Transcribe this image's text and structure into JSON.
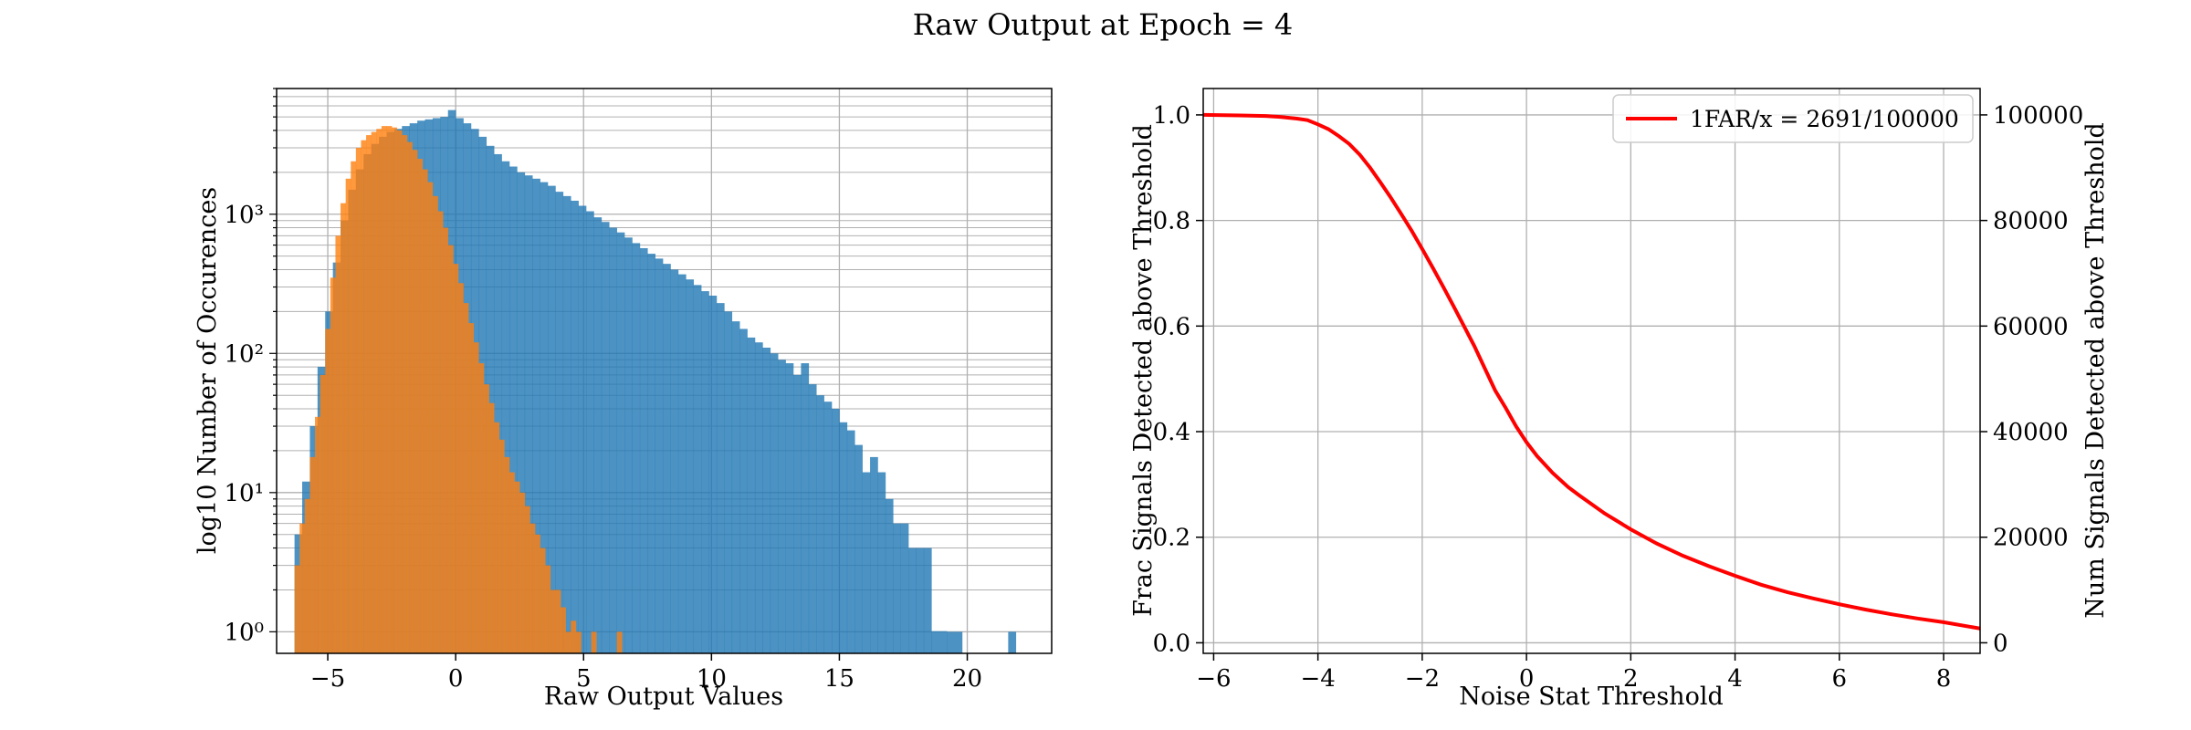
{
  "figure": {
    "title": "Raw Output at Epoch = 4"
  },
  "colors": {
    "blue": "#1f77b4",
    "orange": "#ff7f0e",
    "curve": "#ff0000",
    "grid": "#b0b0b0"
  },
  "chart_data": [
    {
      "type": "bar",
      "subtype": "histogram-overlay",
      "xlabel": "Raw Output Values",
      "ylabel": "log10 Number of Occurences",
      "xlim": [
        -7.0,
        23.3
      ],
      "ylim": [
        0.7,
        8000
      ],
      "yscale": "log",
      "grid": true,
      "x_ticks": [
        -5,
        0,
        5,
        10,
        15,
        20
      ],
      "x_tick_labels": [
        "−5",
        "0",
        "5",
        "10",
        "15",
        "20"
      ],
      "y_ticks": [
        1,
        10,
        100,
        1000
      ],
      "y_tick_labels": [
        "10⁰",
        "10¹",
        "10²",
        "10³"
      ],
      "series": [
        {
          "color": "#1f77b4",
          "alpha": 0.8,
          "bins": [
            [
              -6.3,
              -6.0,
              5
            ],
            [
              -6.0,
              -5.7,
              12
            ],
            [
              -5.7,
              -5.4,
              30
            ],
            [
              -5.4,
              -5.1,
              80
            ],
            [
              -5.1,
              -4.8,
              200
            ],
            [
              -4.8,
              -4.5,
              450
            ],
            [
              -4.5,
              -4.2,
              900
            ],
            [
              -4.2,
              -3.9,
              1500
            ],
            [
              -3.9,
              -3.6,
              2100
            ],
            [
              -3.6,
              -3.3,
              2700
            ],
            [
              -3.3,
              -3.0,
              3200
            ],
            [
              -3.0,
              -2.7,
              3600
            ],
            [
              -2.7,
              -2.4,
              3900
            ],
            [
              -2.4,
              -2.1,
              4100
            ],
            [
              -2.1,
              -1.8,
              4300
            ],
            [
              -1.8,
              -1.5,
              4500
            ],
            [
              -1.5,
              -1.2,
              4700
            ],
            [
              -1.2,
              -0.9,
              4800
            ],
            [
              -0.9,
              -0.6,
              4900
            ],
            [
              -0.6,
              -0.3,
              5000
            ],
            [
              -0.3,
              0.0,
              5600
            ],
            [
              0.0,
              0.3,
              4900
            ],
            [
              0.3,
              0.6,
              4500
            ],
            [
              0.6,
              0.9,
              4100
            ],
            [
              0.9,
              1.2,
              3600
            ],
            [
              1.2,
              1.5,
              3100
            ],
            [
              1.5,
              1.8,
              2700
            ],
            [
              1.8,
              2.1,
              2400
            ],
            [
              2.1,
              2.4,
              2200
            ],
            [
              2.4,
              2.7,
              2000
            ],
            [
              2.7,
              3.0,
              1900
            ],
            [
              3.0,
              3.3,
              1800
            ],
            [
              3.3,
              3.6,
              1700
            ],
            [
              3.6,
              3.9,
              1600
            ],
            [
              3.9,
              4.2,
              1450
            ],
            [
              4.2,
              4.5,
              1350
            ],
            [
              4.5,
              4.8,
              1250
            ],
            [
              4.8,
              5.1,
              1150
            ],
            [
              5.1,
              5.4,
              1050
            ],
            [
              5.4,
              5.7,
              950
            ],
            [
              5.7,
              6.0,
              880
            ],
            [
              6.0,
              6.3,
              800
            ],
            [
              6.3,
              6.6,
              740
            ],
            [
              6.6,
              6.9,
              680
            ],
            [
              6.9,
              7.2,
              620
            ],
            [
              7.2,
              7.5,
              570
            ],
            [
              7.5,
              7.8,
              520
            ],
            [
              7.8,
              8.1,
              480
            ],
            [
              8.1,
              8.4,
              440
            ],
            [
              8.4,
              8.7,
              400
            ],
            [
              8.7,
              9.0,
              370
            ],
            [
              9.0,
              9.3,
              340
            ],
            [
              9.3,
              9.6,
              310
            ],
            [
              9.6,
              9.9,
              280
            ],
            [
              9.9,
              10.2,
              260
            ],
            [
              10.2,
              10.5,
              230
            ],
            [
              10.5,
              10.8,
              200
            ],
            [
              10.8,
              11.1,
              170
            ],
            [
              11.1,
              11.4,
              150
            ],
            [
              11.4,
              11.7,
              130
            ],
            [
              11.7,
              12.0,
              120
            ],
            [
              12.0,
              12.3,
              110
            ],
            [
              12.3,
              12.6,
              100
            ],
            [
              12.6,
              12.9,
              90
            ],
            [
              12.9,
              13.2,
              85
            ],
            [
              13.2,
              13.5,
              70
            ],
            [
              13.5,
              13.8,
              85
            ],
            [
              13.8,
              14.1,
              60
            ],
            [
              14.1,
              14.4,
              50
            ],
            [
              14.4,
              14.7,
              45
            ],
            [
              14.7,
              15.0,
              40
            ],
            [
              15.0,
              15.3,
              32
            ],
            [
              15.3,
              15.6,
              28
            ],
            [
              15.6,
              15.9,
              22
            ],
            [
              15.9,
              16.2,
              14
            ],
            [
              16.2,
              16.5,
              18
            ],
            [
              16.5,
              16.8,
              14
            ],
            [
              16.8,
              17.1,
              9
            ],
            [
              17.1,
              17.4,
              6
            ],
            [
              17.4,
              17.7,
              6
            ],
            [
              17.7,
              18.0,
              4
            ],
            [
              18.0,
              18.3,
              4
            ],
            [
              18.3,
              18.6,
              4
            ],
            [
              18.6,
              19.2,
              1.01
            ],
            [
              19.2,
              19.8,
              1
            ],
            [
              21.6,
              21.9,
              1
            ]
          ]
        },
        {
          "color": "#ff7f0e",
          "alpha": 0.8,
          "bins": [
            [
              -6.3,
              -6.1,
              3
            ],
            [
              -6.1,
              -5.9,
              6
            ],
            [
              -5.9,
              -5.7,
              9
            ],
            [
              -5.7,
              -5.5,
              18
            ],
            [
              -5.5,
              -5.3,
              35
            ],
            [
              -5.3,
              -5.1,
              70
            ],
            [
              -5.1,
              -4.9,
              150
            ],
            [
              -4.9,
              -4.7,
              350
            ],
            [
              -4.7,
              -4.5,
              700
            ],
            [
              -4.5,
              -4.3,
              1200
            ],
            [
              -4.3,
              -4.1,
              1800
            ],
            [
              -4.1,
              -3.9,
              2400
            ],
            [
              -3.9,
              -3.7,
              3000
            ],
            [
              -3.7,
              -3.5,
              3400
            ],
            [
              -3.5,
              -3.3,
              3700
            ],
            [
              -3.3,
              -3.1,
              3900
            ],
            [
              -3.1,
              -2.9,
              4100
            ],
            [
              -2.9,
              -2.7,
              4300
            ],
            [
              -2.7,
              -2.5,
              4300
            ],
            [
              -2.5,
              -2.3,
              4200
            ],
            [
              -2.3,
              -2.1,
              4000
            ],
            [
              -2.1,
              -1.9,
              3700
            ],
            [
              -1.9,
              -1.7,
              3300
            ],
            [
              -1.7,
              -1.5,
              2900
            ],
            [
              -1.5,
              -1.3,
              2500
            ],
            [
              -1.3,
              -1.1,
              2100
            ],
            [
              -1.1,
              -0.9,
              1700
            ],
            [
              -0.9,
              -0.7,
              1350
            ],
            [
              -0.7,
              -0.5,
              1050
            ],
            [
              -0.5,
              -0.3,
              800
            ],
            [
              -0.3,
              -0.1,
              600
            ],
            [
              -0.1,
              0.1,
              440
            ],
            [
              0.1,
              0.3,
              320
            ],
            [
              0.3,
              0.5,
              230
            ],
            [
              0.5,
              0.7,
              165
            ],
            [
              0.7,
              0.9,
              120
            ],
            [
              0.9,
              1.1,
              85
            ],
            [
              1.1,
              1.3,
              60
            ],
            [
              1.3,
              1.5,
              44
            ],
            [
              1.5,
              1.7,
              32
            ],
            [
              1.7,
              1.9,
              24
            ],
            [
              1.9,
              2.1,
              18
            ],
            [
              2.1,
              2.3,
              14
            ],
            [
              2.3,
              2.5,
              12
            ],
            [
              2.5,
              2.7,
              10
            ],
            [
              2.7,
              2.9,
              8
            ],
            [
              2.9,
              3.1,
              6
            ],
            [
              3.1,
              3.3,
              5
            ],
            [
              3.3,
              3.5,
              4
            ],
            [
              3.5,
              3.7,
              3
            ],
            [
              3.7,
              3.9,
              2
            ],
            [
              3.9,
              4.1,
              2
            ],
            [
              4.1,
              4.3,
              1.5
            ],
            [
              4.3,
              4.5,
              1
            ],
            [
              4.5,
              4.7,
              1.2
            ],
            [
              4.7,
              4.9,
              1
            ],
            [
              5.3,
              5.5,
              1
            ],
            [
              6.3,
              6.5,
              1
            ]
          ]
        }
      ]
    },
    {
      "type": "line",
      "xlabel": "Noise Stat Threshold",
      "ylabel": "Frac Signals Detected above Threshold",
      "ylabel_right": "Num Signals Detected above Threshold",
      "xlim": [
        -6.2,
        8.7
      ],
      "ylim": [
        -0.02,
        1.05
      ],
      "ylim_right": [
        -2000,
        105000
      ],
      "grid": true,
      "legend_position": "upper-right",
      "x_ticks": [
        -6,
        -4,
        -2,
        0,
        2,
        4,
        6,
        8
      ],
      "x_tick_labels": [
        "−6",
        "−4",
        "−2",
        "0",
        "2",
        "4",
        "6",
        "8"
      ],
      "y_ticks": [
        0.0,
        0.2,
        0.4,
        0.6,
        0.8,
        1.0
      ],
      "y_tick_labels": [
        "0.0",
        "0.2",
        "0.4",
        "0.6",
        "0.8",
        "1.0"
      ],
      "y_ticks_right": [
        0,
        20000,
        40000,
        60000,
        80000,
        100000
      ],
      "y_tick_labels_right": [
        "0",
        "20000",
        "40000",
        "60000",
        "80000",
        "100000"
      ],
      "series": [
        {
          "name": "1FAR/x = 2691/100000",
          "color": "#ff0000",
          "x": [
            -6.2,
            -5.5,
            -5.0,
            -4.7,
            -4.4,
            -4.2,
            -4.0,
            -3.8,
            -3.6,
            -3.4,
            -3.2,
            -3.0,
            -2.8,
            -2.6,
            -2.4,
            -2.2,
            -2.0,
            -1.8,
            -1.6,
            -1.4,
            -1.2,
            -1.0,
            -0.8,
            -0.6,
            -0.4,
            -0.2,
            0.0,
            0.2,
            0.5,
            0.8,
            1.0,
            1.5,
            2.0,
            2.5,
            3.0,
            3.5,
            4.0,
            4.5,
            5.0,
            5.5,
            6.0,
            6.5,
            7.0,
            7.5,
            8.0,
            8.7
          ],
          "y": [
            1.0,
            0.999,
            0.998,
            0.996,
            0.993,
            0.99,
            0.982,
            0.973,
            0.96,
            0.945,
            0.925,
            0.9,
            0.872,
            0.843,
            0.812,
            0.78,
            0.746,
            0.711,
            0.675,
            0.638,
            0.6,
            0.562,
            0.52,
            0.478,
            0.445,
            0.41,
            0.38,
            0.354,
            0.322,
            0.295,
            0.28,
            0.245,
            0.215,
            0.188,
            0.165,
            0.145,
            0.127,
            0.11,
            0.096,
            0.084,
            0.073,
            0.063,
            0.054,
            0.046,
            0.039,
            0.027
          ]
        }
      ]
    }
  ]
}
